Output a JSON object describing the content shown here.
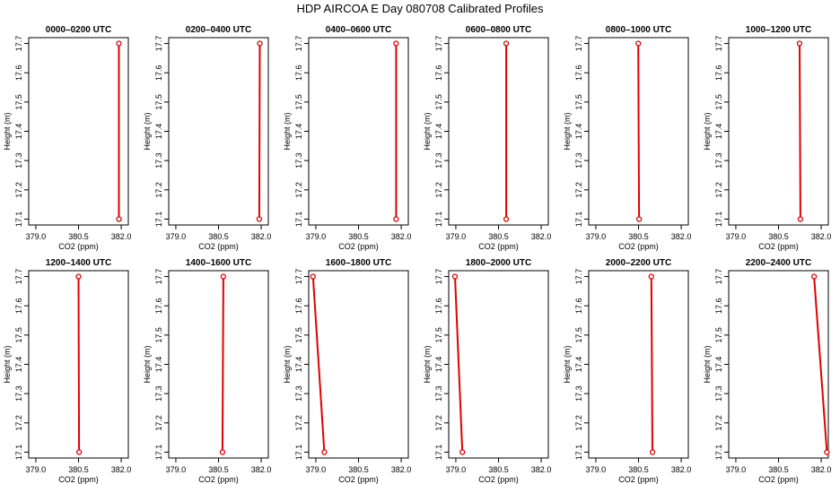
{
  "title": "HDP AIRCOA E  Day 080708  Calibrated Profiles",
  "colors": {
    "profile": "#e00000",
    "axis": "#000000"
  },
  "chart_data": [
    {
      "type": "line",
      "title": "0000–0200 UTC",
      "xlabel": "CO2 (ppm)",
      "ylabel": "Height (m)",
      "xlim": [
        378.75,
        382.25
      ],
      "ylim": [
        17.08,
        17.72
      ],
      "x_ticks": [
        "379.0",
        "380.5",
        "382.0"
      ],
      "y_ticks": [
        "17.1",
        "17.2",
        "17.3",
        "17.4",
        "17.5",
        "17.6",
        "17.7"
      ],
      "series": [
        {
          "x": [
            381.92,
            381.92
          ],
          "y": [
            17.1,
            17.7
          ]
        }
      ]
    },
    {
      "type": "line",
      "title": "0200–0400 UTC",
      "xlabel": "CO2 (ppm)",
      "ylabel": "Height (m)",
      "xlim": [
        378.75,
        382.25
      ],
      "ylim": [
        17.08,
        17.72
      ],
      "x_ticks": [
        "379.0",
        "380.5",
        "382.0"
      ],
      "y_ticks": [
        "17.1",
        "17.2",
        "17.3",
        "17.4",
        "17.5",
        "17.6",
        "17.7"
      ],
      "series": [
        {
          "x": [
            381.93,
            381.95
          ],
          "y": [
            17.1,
            17.7
          ]
        }
      ]
    },
    {
      "type": "line",
      "title": "0400–0600 UTC",
      "xlabel": "CO2 (ppm)",
      "ylabel": "Height (m)",
      "xlim": [
        378.75,
        382.25
      ],
      "ylim": [
        17.08,
        17.72
      ],
      "x_ticks": [
        "379.0",
        "380.5",
        "382.0"
      ],
      "y_ticks": [
        "17.1",
        "17.2",
        "17.3",
        "17.4",
        "17.5",
        "17.6",
        "17.7"
      ],
      "series": [
        {
          "x": [
            381.82,
            381.82
          ],
          "y": [
            17.1,
            17.7
          ]
        }
      ]
    },
    {
      "type": "line",
      "title": "0600–0800 UTC",
      "xlabel": "CO2 (ppm)",
      "ylabel": "Height (m)",
      "xlim": [
        378.75,
        382.25
      ],
      "ylim": [
        17.08,
        17.72
      ],
      "x_ticks": [
        "379.0",
        "380.5",
        "382.0"
      ],
      "y_ticks": [
        "17.1",
        "17.2",
        "17.3",
        "17.4",
        "17.5",
        "17.6",
        "17.7"
      ],
      "series": [
        {
          "x": [
            380.77,
            380.77
          ],
          "y": [
            17.1,
            17.7
          ]
        }
      ]
    },
    {
      "type": "line",
      "title": "0800–1000 UTC",
      "xlabel": "CO2 (ppm)",
      "ylabel": "Height (m)",
      "xlim": [
        378.75,
        382.25
      ],
      "ylim": [
        17.08,
        17.72
      ],
      "x_ticks": [
        "379.0",
        "380.5",
        "382.0"
      ],
      "y_ticks": [
        "17.1",
        "17.2",
        "17.3",
        "17.4",
        "17.5",
        "17.6",
        "17.7"
      ],
      "series": [
        {
          "x": [
            380.52,
            380.49
          ],
          "y": [
            17.1,
            17.7
          ]
        }
      ]
    },
    {
      "type": "line",
      "title": "1000–1200 UTC",
      "xlabel": "CO2 (ppm)",
      "ylabel": "Height (m)",
      "xlim": [
        378.75,
        382.25
      ],
      "ylim": [
        17.08,
        17.72
      ],
      "x_ticks": [
        "379.0",
        "380.5",
        "382.0"
      ],
      "y_ticks": [
        "17.1",
        "17.2",
        "17.3",
        "17.4",
        "17.5",
        "17.6",
        "17.7"
      ],
      "series": [
        {
          "x": [
            381.27,
            381.24
          ],
          "y": [
            17.1,
            17.7
          ]
        }
      ]
    },
    {
      "type": "line",
      "title": "1200–1400 UTC",
      "xlabel": "CO2 (ppm)",
      "ylabel": "Height (m)",
      "xlim": [
        378.75,
        382.25
      ],
      "ylim": [
        17.08,
        17.72
      ],
      "x_ticks": [
        "379.0",
        "380.5",
        "382.0"
      ],
      "y_ticks": [
        "17.1",
        "17.2",
        "17.3",
        "17.4",
        "17.5",
        "17.6",
        "17.7"
      ],
      "series": [
        {
          "x": [
            380.52,
            380.5
          ],
          "y": [
            17.1,
            17.7
          ]
        }
      ]
    },
    {
      "type": "line",
      "title": "1400–1600 UTC",
      "xlabel": "CO2 (ppm)",
      "ylabel": "Height (m)",
      "xlim": [
        378.75,
        382.25
      ],
      "ylim": [
        17.08,
        17.72
      ],
      "x_ticks": [
        "379.0",
        "380.5",
        "382.0"
      ],
      "y_ticks": [
        "17.1",
        "17.2",
        "17.3",
        "17.4",
        "17.5",
        "17.6",
        "17.7"
      ],
      "series": [
        {
          "x": [
            380.64,
            380.67
          ],
          "y": [
            17.1,
            17.7
          ]
        }
      ]
    },
    {
      "type": "line",
      "title": "1600–1800 UTC",
      "xlabel": "CO2 (ppm)",
      "ylabel": "Height (m)",
      "xlim": [
        378.75,
        382.25
      ],
      "ylim": [
        17.08,
        17.72
      ],
      "x_ticks": [
        "379.0",
        "380.5",
        "382.0"
      ],
      "y_ticks": [
        "17.1",
        "17.2",
        "17.3",
        "17.4",
        "17.5",
        "17.6",
        "17.7"
      ],
      "series": [
        {
          "x": [
            379.3,
            378.9
          ],
          "y": [
            17.1,
            17.7
          ]
        }
      ]
    },
    {
      "type": "line",
      "title": "1800–2000 UTC",
      "xlabel": "CO2 (ppm)",
      "ylabel": "Height (m)",
      "xlim": [
        378.75,
        382.25
      ],
      "ylim": [
        17.08,
        17.72
      ],
      "x_ticks": [
        "379.0",
        "380.5",
        "382.0"
      ],
      "y_ticks": [
        "17.1",
        "17.2",
        "17.3",
        "17.4",
        "17.5",
        "17.6",
        "17.7"
      ],
      "series": [
        {
          "x": [
            379.23,
            378.97
          ],
          "y": [
            17.1,
            17.7
          ]
        }
      ]
    },
    {
      "type": "line",
      "title": "2000–2200 UTC",
      "xlabel": "CO2 (ppm)",
      "ylabel": "Height (m)",
      "xlim": [
        378.75,
        382.25
      ],
      "ylim": [
        17.08,
        17.72
      ],
      "x_ticks": [
        "379.0",
        "380.5",
        "382.0"
      ],
      "y_ticks": [
        "17.1",
        "17.2",
        "17.3",
        "17.4",
        "17.5",
        "17.6",
        "17.7"
      ],
      "series": [
        {
          "x": [
            380.99,
            380.95
          ],
          "y": [
            17.1,
            17.7
          ]
        }
      ]
    },
    {
      "type": "line",
      "title": "2200–2400 UTC",
      "xlabel": "CO2 (ppm)",
      "ylabel": "Height (m)",
      "xlim": [
        378.75,
        382.25
      ],
      "ylim": [
        17.08,
        17.72
      ],
      "x_ticks": [
        "379.0",
        "380.5",
        "382.0"
      ],
      "y_ticks": [
        "17.1",
        "17.2",
        "17.3",
        "17.4",
        "17.5",
        "17.6",
        "17.7"
      ],
      "series": [
        {
          "x": [
            382.2,
            381.75
          ],
          "y": [
            17.1,
            17.7
          ]
        }
      ]
    }
  ]
}
